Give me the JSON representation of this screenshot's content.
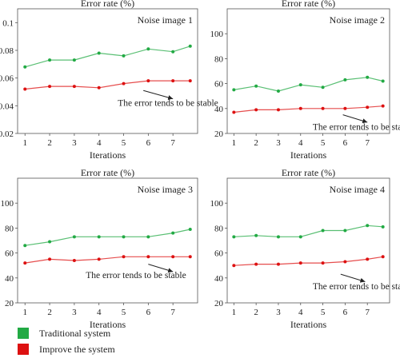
{
  "legend": {
    "items": [
      {
        "label": "Traditional system",
        "color": "#22aa44"
      },
      {
        "label": "Improve the system",
        "color": "#dd1111"
      }
    ]
  },
  "chart_data": [
    {
      "type": "line",
      "title": "Error rate (%)",
      "panel_label": "Noise image 1",
      "xlabel": "Iterations",
      "x": [
        1,
        2,
        3,
        4,
        5,
        6,
        7,
        7.7
      ],
      "xticks": [
        1,
        2,
        3,
        4,
        5,
        6,
        7
      ],
      "xlim": [
        0.7,
        8.0
      ],
      "ylim": [
        0.02,
        0.11
      ],
      "yticks": [
        0.02,
        0.04,
        0.06,
        0.08,
        0.1
      ],
      "ytick_labels": [
        "0.02",
        "0.04",
        "0.06",
        "0.08",
        "0.1"
      ],
      "series": [
        {
          "name": "Traditional system",
          "color": "#22aa44",
          "values": [
            0.068,
            0.073,
            0.073,
            0.078,
            0.076,
            0.081,
            0.079,
            0.083
          ]
        },
        {
          "name": "Improve the system",
          "color": "#dd1111",
          "values": [
            0.052,
            0.054,
            0.054,
            0.053,
            0.056,
            0.058,
            0.058,
            0.058
          ]
        }
      ],
      "annotation": {
        "text": "The error tends to be stable",
        "arrow_from": [
          5.8,
          0.051
        ],
        "arrow_to": [
          7.0,
          0.045
        ],
        "text_at": [
          6.8,
          0.04
        ]
      }
    },
    {
      "type": "line",
      "title": "Error rate (%)",
      "panel_label": "Noise image 2",
      "xlabel": "Iterations",
      "x": [
        1,
        2,
        3,
        4,
        5,
        6,
        7,
        7.7
      ],
      "xticks": [
        1,
        2,
        3,
        4,
        5,
        6,
        7
      ],
      "xlim": [
        0.7,
        8.0
      ],
      "ylim": [
        20,
        120
      ],
      "yticks": [
        20,
        40,
        60,
        80,
        100
      ],
      "ytick_labels": [
        "20",
        "40",
        "60",
        "80",
        "100"
      ],
      "series": [
        {
          "name": "Traditional system",
          "color": "#22aa44",
          "values": [
            55,
            58,
            54,
            59,
            57,
            63,
            65,
            62
          ]
        },
        {
          "name": "Improve the system",
          "color": "#dd1111",
          "values": [
            37,
            39,
            39,
            40,
            40,
            40,
            41,
            42
          ]
        }
      ],
      "annotation": {
        "text": "The error tends to be stable",
        "arrow_from": [
          5.9,
          35
        ],
        "arrow_to": [
          7.0,
          29
        ],
        "text_at": [
          6.8,
          23
        ]
      }
    },
    {
      "type": "line",
      "title": "Error rate (%)",
      "panel_label": "Noise image 3",
      "xlabel": "Iterations",
      "x": [
        1,
        2,
        3,
        4,
        5,
        6,
        7,
        7.7
      ],
      "xticks": [
        1,
        2,
        3,
        4,
        5,
        6,
        7
      ],
      "xlim": [
        0.7,
        8.0
      ],
      "ylim": [
        20,
        120
      ],
      "yticks": [
        20,
        40,
        60,
        80,
        100
      ],
      "ytick_labels": [
        "20",
        "40",
        "60",
        "80",
        "100"
      ],
      "series": [
        {
          "name": "Traditional system",
          "color": "#22aa44",
          "values": [
            66,
            69,
            73,
            73,
            73,
            73,
            76,
            79
          ]
        },
        {
          "name": "Improve the system",
          "color": "#dd1111",
          "values": [
            52,
            55,
            54,
            55,
            57,
            57,
            57,
            57
          ]
        }
      ],
      "annotation": {
        "text": "The error tends to be stable",
        "arrow_from": [
          6.0,
          51
        ],
        "arrow_to": [
          7.0,
          45
        ],
        "text_at": [
          5.5,
          40
        ]
      }
    },
    {
      "type": "line",
      "title": "Error rate (%)",
      "panel_label": "Noise image 4",
      "xlabel": "Iterations",
      "x": [
        1,
        2,
        3,
        4,
        5,
        6,
        7,
        7.7
      ],
      "xticks": [
        1,
        2,
        3,
        4,
        5,
        6,
        7
      ],
      "xlim": [
        0.7,
        8.0
      ],
      "ylim": [
        20,
        120
      ],
      "yticks": [
        20,
        40,
        60,
        80,
        100
      ],
      "ytick_labels": [
        "20",
        "40",
        "60",
        "80",
        "100"
      ],
      "series": [
        {
          "name": "Traditional system",
          "color": "#22aa44",
          "values": [
            73,
            74,
            73,
            73,
            78,
            78,
            82,
            81
          ]
        },
        {
          "name": "Improve the system",
          "color": "#dd1111",
          "values": [
            50,
            51,
            51,
            52,
            52,
            53,
            55,
            57
          ]
        }
      ],
      "annotation": {
        "text": "The error tends to be stable",
        "arrow_from": [
          5.8,
          43
        ],
        "arrow_to": [
          6.9,
          37
        ],
        "text_at": [
          6.8,
          31
        ]
      }
    }
  ]
}
